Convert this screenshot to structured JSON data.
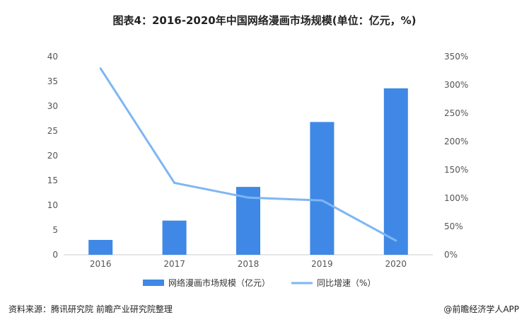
{
  "title": "图表4：2016-2020年中国网络漫画市场规模(单位：亿元，%)",
  "source": "资料来源：腾讯研究院 前瞻产业研究院整理",
  "credit": "@前瞻经济学人APP",
  "colors": {
    "bar": "#3f88e6",
    "line": "#7eb6f2",
    "axis": "#cccccc"
  },
  "chart_data": {
    "type": "bar",
    "categories": [
      "2016",
      "2017",
      "2018",
      "2019",
      "2020"
    ],
    "series": [
      {
        "name": "网络漫画市场规模（亿元）",
        "type": "bar",
        "axis": "left",
        "values": [
          3.0,
          6.9,
          13.7,
          26.8,
          33.6
        ]
      },
      {
        "name": "同比增速（%）",
        "type": "line",
        "axis": "right",
        "values": [
          329,
          127,
          101,
          96,
          25
        ]
      }
    ],
    "y_left": {
      "ylim": [
        0,
        40
      ],
      "ticks": [
        "0",
        "5",
        "10",
        "15",
        "20",
        "25",
        "30",
        "35",
        "40"
      ]
    },
    "y_right": {
      "ylim": [
        0,
        350
      ],
      "ticks": [
        "0%",
        "50%",
        "100%",
        "150%",
        "200%",
        "250%",
        "300%",
        "350%"
      ]
    },
    "legend_position": "bottom-center",
    "grid": false
  }
}
